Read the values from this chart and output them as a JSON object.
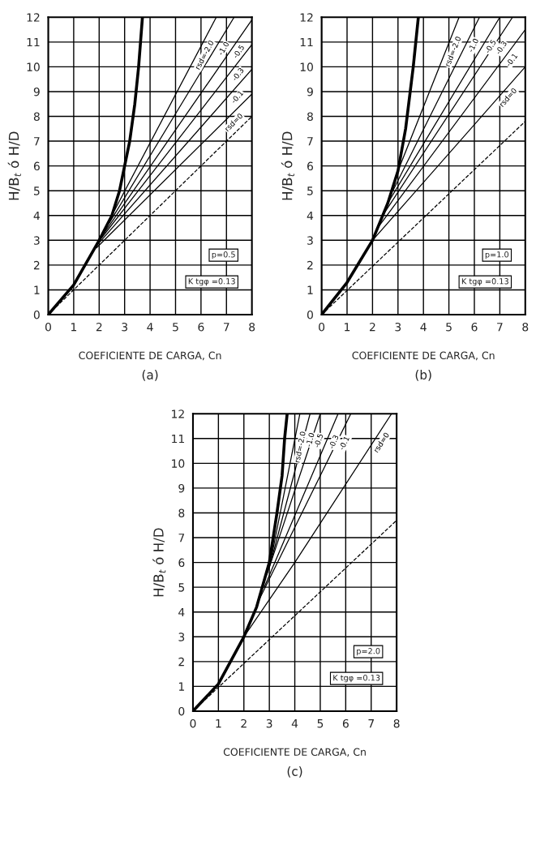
{
  "chart_data": [
    {
      "type": "line",
      "title": "(a)",
      "xlabel": "COEFICIENTE DE CARGA, Cn",
      "ylabel": "H/B$_{t}$ ó H/D",
      "xlim": [
        0,
        8
      ],
      "ylim": [
        0,
        12
      ],
      "xticks": [
        0,
        1,
        2,
        3,
        4,
        5,
        6,
        7,
        8
      ],
      "yticks": [
        0,
        1,
        2,
        3,
        4,
        5,
        6,
        7,
        8,
        9,
        10,
        11,
        12
      ],
      "grid": true,
      "annotations": [
        "p=0.5",
        "K tgφ =0.13"
      ],
      "series": [
        {
          "color": "#000000",
          "x": [
            0,
            1,
            2,
            2.5,
            2.8,
            3,
            3.2,
            3.4,
            3.55,
            3.7
          ],
          "values": [
            0,
            1.2,
            3,
            4,
            5,
            6,
            7,
            8.5,
            10,
            12
          ]
        },
        {
          "name": "rsd=-2.0",
          "color": "#000000",
          "x": [
            2.6,
            6.6
          ],
          "values": [
            4.2,
            12
          ]
        },
        {
          "name": "-1.0",
          "color": "#000000",
          "x": [
            2.4,
            7.3
          ],
          "values": [
            3.7,
            12
          ]
        },
        {
          "name": "-0.5",
          "color": "#000000",
          "x": [
            2.2,
            8
          ],
          "values": [
            3.3,
            11.9
          ]
        },
        {
          "name": "-0.3",
          "color": "#000000",
          "x": [
            2.1,
            8
          ],
          "values": [
            3.1,
            10.9
          ]
        },
        {
          "name": "-0.1",
          "color": "#000000",
          "x": [
            2.0,
            8
          ],
          "values": [
            2.9,
            9.9
          ]
        },
        {
          "name": "rsd=0",
          "color": "#000000",
          "x": [
            1.9,
            8
          ],
          "values": [
            2.7,
            8.9
          ]
        },
        {
          "color": "#000000",
          "line_style": "dashed",
          "x": [
            0,
            8
          ],
          "values": [
            0,
            8
          ]
        }
      ]
    },
    {
      "type": "line",
      "title": "(b)",
      "xlabel": "COEFICIENTE DE CARGA, Cn",
      "ylabel": "H/B$_{t}$ ó H/D",
      "xlim": [
        0,
        8
      ],
      "ylim": [
        0,
        12
      ],
      "xticks": [
        0,
        1,
        2,
        3,
        4,
        5,
        6,
        7,
        8
      ],
      "yticks": [
        0,
        1,
        2,
        3,
        4,
        5,
        6,
        7,
        8,
        9,
        10,
        11,
        12
      ],
      "grid": true,
      "annotations": [
        "p=1.0",
        "K tgφ =0.13"
      ],
      "series": [
        {
          "color": "#000000",
          "x": [
            0,
            1,
            2,
            2.6,
            3,
            3.3,
            3.6,
            3.8
          ],
          "values": [
            0,
            1.3,
            3,
            4.5,
            5.8,
            7.5,
            10,
            12
          ]
        },
        {
          "name": "rsd=-2.0",
          "color": "#000000",
          "x": [
            3,
            5.4
          ],
          "values": [
            5.8,
            12
          ]
        },
        {
          "name": "-1.0",
          "color": "#000000",
          "x": [
            2.8,
            6.2
          ],
          "values": [
            5,
            12
          ]
        },
        {
          "name": "-0.5",
          "color": "#000000",
          "x": [
            2.6,
            7
          ],
          "values": [
            4.5,
            12
          ]
        },
        {
          "name": "-0.3",
          "color": "#000000",
          "x": [
            2.4,
            7.5
          ],
          "values": [
            4,
            12
          ]
        },
        {
          "name": "-0.1",
          "color": "#000000",
          "x": [
            2.2,
            8
          ],
          "values": [
            3.5,
            11.5
          ]
        },
        {
          "name": "rsd=0",
          "color": "#000000",
          "x": [
            2,
            8
          ],
          "values": [
            3,
            10
          ]
        },
        {
          "color": "#000000",
          "line_style": "dashed",
          "x": [
            0,
            8
          ],
          "values": [
            0,
            7.8
          ]
        }
      ]
    },
    {
      "type": "line",
      "title": "(c)",
      "xlabel": "COEFICIENTE DE CARGA, Cn",
      "ylabel": "H/B$_{t}$ ó H/D",
      "xlim": [
        0,
        8
      ],
      "ylim": [
        0,
        12
      ],
      "xticks": [
        0,
        1,
        2,
        3,
        4,
        5,
        6,
        7,
        8
      ],
      "yticks": [
        0,
        1,
        2,
        3,
        4,
        5,
        6,
        7,
        8,
        9,
        10,
        11,
        12
      ],
      "grid": true,
      "annotations": [
        "p=2.0",
        "K tgφ =0.13"
      ],
      "series": [
        {
          "color": "#000000",
          "x": [
            0,
            1,
            2,
            2.5,
            3,
            3.3,
            3.5,
            3.6,
            3.7
          ],
          "values": [
            0,
            1.1,
            3,
            4.2,
            6,
            8,
            9.5,
            11,
            12
          ]
        },
        {
          "name": "rsd=-2.0",
          "color": "#000000",
          "x": [
            3.1,
            4.2
          ],
          "values": [
            6.3,
            12
          ]
        },
        {
          "name": "-1.0",
          "color": "#000000",
          "x": [
            3,
            4.6
          ],
          "values": [
            5.8,
            12
          ]
        },
        {
          "name": "-0.5",
          "color": "#000000",
          "x": [
            2.9,
            5.0
          ],
          "values": [
            5.5,
            12
          ]
        },
        {
          "name": "-0.3",
          "color": "#000000",
          "x": [
            2.8,
            5.7
          ],
          "values": [
            5,
            12
          ]
        },
        {
          "name": "-0.1",
          "color": "#000000",
          "x": [
            2.6,
            6.2
          ],
          "values": [
            4.5,
            12
          ]
        },
        {
          "name": "rsd=0",
          "color": "#000000",
          "x": [
            2,
            4,
            7.8
          ],
          "values": [
            3,
            6,
            12
          ]
        },
        {
          "color": "#000000",
          "line_style": "dashed",
          "x": [
            0,
            8
          ],
          "values": [
            0,
            7.7
          ]
        }
      ]
    }
  ]
}
